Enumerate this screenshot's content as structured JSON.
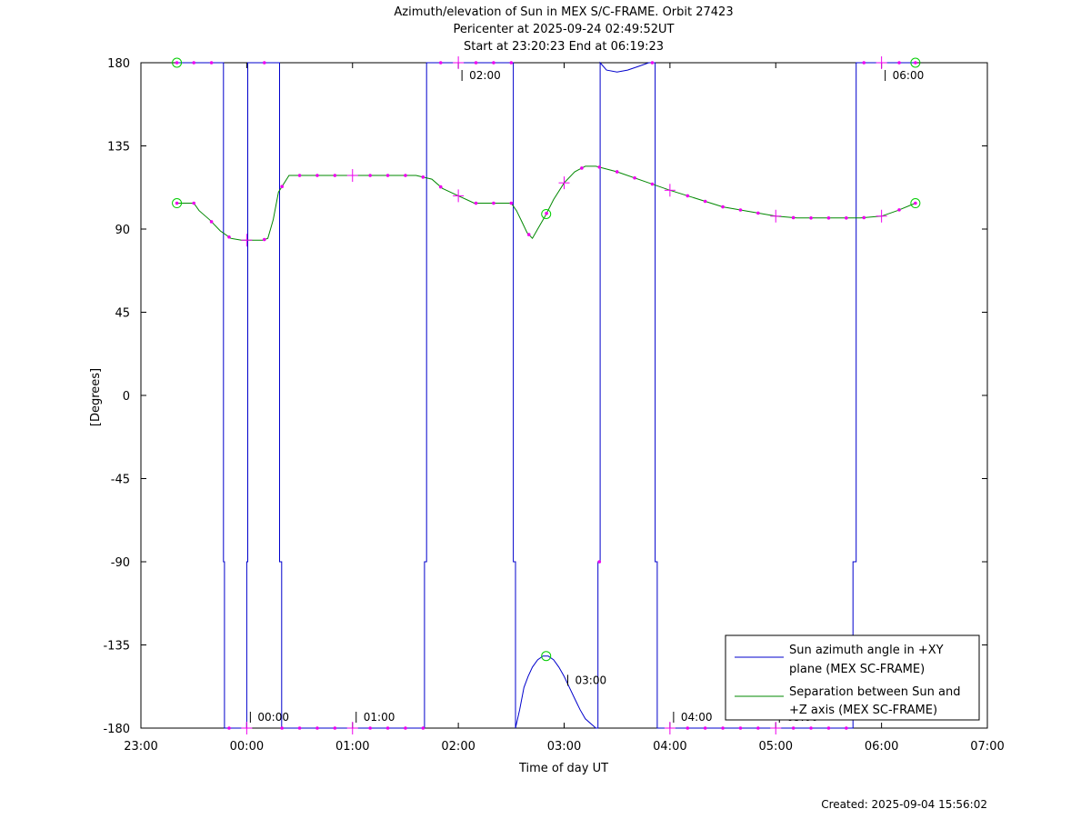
{
  "chart_data": {
    "type": "line",
    "title_lines": [
      "Azimuth/elevation of Sun in MEX S/C-FRAME.  Orbit 27423",
      "Pericenter at 2025-09-24 02:49:52UT",
      "Start at 23:20:23 End at 06:19:23"
    ],
    "xlabel": "Time of day UT",
    "ylabel": "[Degrees]",
    "footer": "Created: 2025-09-04 15:56:02",
    "xlim": [
      -1.0,
      7.0
    ],
    "ylim": [
      -180,
      180
    ],
    "x_ticks": [
      {
        "v": -1.0,
        "label": "23:00"
      },
      {
        "v": 0.0,
        "label": "00:00"
      },
      {
        "v": 1.0,
        "label": "01:00"
      },
      {
        "v": 2.0,
        "label": "02:00"
      },
      {
        "v": 3.0,
        "label": "03:00"
      },
      {
        "v": 4.0,
        "label": "04:00"
      },
      {
        "v": 5.0,
        "label": "05:00"
      },
      {
        "v": 6.0,
        "label": "06:00"
      },
      {
        "v": 7.0,
        "label": "07:00"
      }
    ],
    "y_ticks": [
      {
        "v": 180,
        "label": "180"
      },
      {
        "v": 135,
        "label": "135"
      },
      {
        "v": 90,
        "label": "90"
      },
      {
        "v": 45,
        "label": "45"
      },
      {
        "v": 0,
        "label": "0"
      },
      {
        "v": -45,
        "label": "-45"
      },
      {
        "v": -90,
        "label": "-90"
      },
      {
        "v": -135,
        "label": "-135"
      },
      {
        "v": -180,
        "label": "-180"
      }
    ],
    "grid": false,
    "legend_position": "bottom-right",
    "series": [
      {
        "name_lines": [
          "Sun azimuth angle in +XY",
          "plane (MEX SC-FRAME)"
        ],
        "color": "#0000cc",
        "x": [
          -0.66,
          -0.22,
          -0.22,
          -0.21,
          -0.21,
          0.0,
          0.0,
          0.01,
          0.01,
          0.31,
          0.31,
          0.33,
          0.33,
          1.68,
          1.68,
          1.7,
          1.7,
          2.52,
          2.52,
          2.54,
          2.54,
          2.58,
          2.62,
          2.66,
          2.7,
          2.75,
          2.8,
          2.85,
          2.9,
          2.95,
          3.0,
          3.05,
          3.1,
          3.15,
          3.2,
          3.3,
          3.32,
          3.32,
          3.34,
          3.34,
          3.4,
          3.5,
          3.6,
          3.7,
          3.8,
          3.86,
          3.86,
          3.88,
          3.88,
          5.73,
          5.73,
          5.76,
          5.76,
          6.32
        ],
        "y": [
          180,
          180,
          -90,
          -90,
          -180,
          -180,
          -90,
          -90,
          180,
          180,
          -90,
          -90,
          -180,
          -180,
          -90,
          -90,
          180,
          180,
          -90,
          -90,
          -180,
          -170,
          -158,
          -152,
          -147,
          -143,
          -141,
          -141,
          -143,
          -147,
          -152,
          -158,
          -164,
          -170,
          -175,
          -180,
          -180,
          -90,
          -90,
          180,
          176,
          175,
          176,
          178,
          180,
          180,
          -90,
          -90,
          -180,
          -180,
          -90,
          -90,
          180,
          180
        ]
      },
      {
        "name_lines": [
          "Separation between Sun and",
          "+Z axis (MEX SC-FRAME)"
        ],
        "color": "#008800",
        "x": [
          -0.66,
          -0.5,
          -0.45,
          -0.35,
          -0.25,
          -0.15,
          -0.05,
          0.0,
          0.1,
          0.15,
          0.2,
          0.25,
          0.3,
          0.4,
          1.0,
          1.6,
          1.75,
          1.85,
          2.0,
          2.15,
          2.5,
          2.55,
          2.6,
          2.65,
          2.7,
          2.75,
          2.82,
          2.9,
          3.0,
          3.1,
          3.2,
          3.3,
          3.5,
          3.8,
          4.0,
          4.5,
          5.0,
          5.2,
          5.8,
          6.0,
          6.15,
          6.32
        ],
        "y": [
          104,
          104,
          100,
          95,
          89,
          85,
          84,
          84,
          84,
          84,
          85,
          95,
          110,
          119,
          119,
          119,
          117,
          112,
          108,
          104,
          104,
          100,
          94,
          88,
          85,
          90,
          97,
          106,
          115,
          121,
          124,
          124,
          121,
          115,
          111,
          102,
          97,
          96,
          96,
          97,
          100,
          104
        ]
      }
    ]
  },
  "annotations": {
    "tick_labels": [
      {
        "x": 0.0,
        "y": -180,
        "text": "00:00"
      },
      {
        "x": 1.0,
        "y": -180,
        "text": "01:00"
      },
      {
        "x": 2.0,
        "y": 180,
        "text": "02:00"
      },
      {
        "x": 3.0,
        "y": -160,
        "text": "03:00"
      },
      {
        "x": 4.0,
        "y": -180,
        "text": "04:00"
      },
      {
        "x": 5.0,
        "y": -180,
        "text": "05:00"
      },
      {
        "x": 6.0,
        "y": 180,
        "text": "06:00"
      }
    ]
  },
  "colors": {
    "azimuth": "#0000cc",
    "separation": "#008800",
    "markers": "#ee00ee",
    "circle_markers": "#00cc00"
  }
}
